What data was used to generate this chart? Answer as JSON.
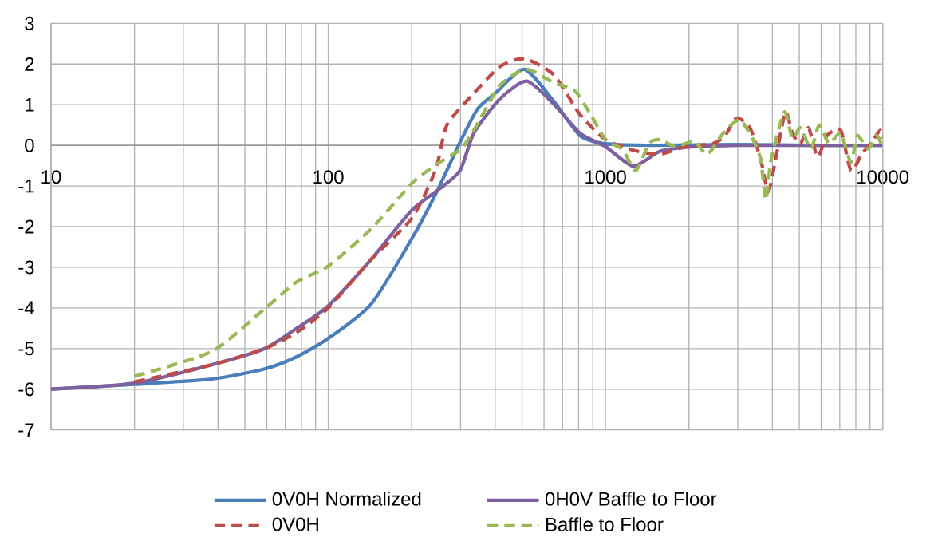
{
  "chart_data": {
    "type": "line",
    "log": "x",
    "xlim": [
      10,
      10000
    ],
    "xticks": [
      10,
      100,
      1000,
      10000
    ],
    "ylim": [
      -7,
      3
    ],
    "yticks": [
      -7,
      -6,
      -5,
      -4,
      -3,
      -2,
      -1,
      0,
      1,
      2,
      3
    ],
    "grid": true,
    "legend": "bottom",
    "marker": "none",
    "series": [
      {
        "name": "0V0H Normalized",
        "color": "#4a7ebb",
        "line_style": "solid",
        "x": [
          10,
          20,
          38,
          59,
          77,
          100,
          143,
          200,
          244,
          300,
          346,
          400,
          509,
          650,
          809,
          1000,
          1500,
          3000,
          6000,
          10000
        ],
        "values": [
          -6,
          -5.88,
          -5.75,
          -5.5,
          -5.2,
          -4.75,
          -3.9,
          -2.3,
          -1.2,
          0.1,
          0.9,
          1.28,
          1.87,
          1.09,
          0.24,
          0.04,
          0,
          0.02,
          0,
          0
        ]
      },
      {
        "name": "0H0V Baffle to Floor",
        "color": "#7d60a0",
        "line_style": "solid",
        "x": [
          10,
          20,
          38,
          59,
          77,
          100,
          143,
          200,
          260,
          300,
          335,
          417,
          520,
          650,
          809,
          1000,
          1258,
          1568,
          1955,
          3000,
          6000,
          10000
        ],
        "values": [
          -6,
          -5.85,
          -5.4,
          -5.0,
          -4.5,
          -3.95,
          -2.8,
          -1.6,
          -1.0,
          -0.6,
          0.3,
          1.15,
          1.58,
          1.02,
          0.3,
          -0.03,
          -0.51,
          -0.15,
          -0.05,
          0,
          0,
          0
        ]
      },
      {
        "name": "0V0H",
        "color": "#be4b48",
        "line_style": "dashed",
        "x": [
          20,
          38,
          59,
          77,
          100,
          143,
          200,
          244,
          268,
          335,
          417,
          509,
          650,
          809,
          1000,
          1258,
          1568,
          1955,
          2440,
          2700,
          2970,
          3320,
          3630,
          3870,
          4140,
          4460,
          4720,
          5050,
          5400,
          5820,
          6300,
          7050,
          7680,
          8400,
          9160,
          9800,
          10000
        ],
        "values": [
          -5.82,
          -5.4,
          -5.0,
          -4.6,
          -4.0,
          -2.8,
          -1.8,
          -0.6,
          0.5,
          1.28,
          1.94,
          2.13,
          1.74,
          0.76,
          0.14,
          -0.12,
          -0.22,
          -0.03,
          0.04,
          0.24,
          0.67,
          0.43,
          -0.35,
          -1.14,
          -0.22,
          0.82,
          0.3,
          0.04,
          0.43,
          -0.28,
          0.24,
          0.37,
          -0.62,
          -0.22,
          0.1,
          0.37,
          0.17
        ]
      },
      {
        "name": "Baffle to Floor",
        "color": "#98b954",
        "line_style": "dashed",
        "x": [
          20,
          38,
          59,
          77,
          100,
          143,
          200,
          244,
          300,
          335,
          417,
          520,
          650,
          774,
          884,
          1000,
          1150,
          1286,
          1436,
          1568,
          1790,
          2090,
          2330,
          2660,
          3040,
          3390,
          3630,
          3790,
          3960,
          4420,
          4720,
          5050,
          5510,
          5900,
          6400,
          7050,
          7680,
          8100,
          8850,
          9530,
          10000
        ],
        "values": [
          -5.68,
          -5.07,
          -4.02,
          -3.36,
          -2.97,
          -2.05,
          -0.94,
          -0.48,
          -0.1,
          0.37,
          1.48,
          1.87,
          1.54,
          1.35,
          0.76,
          0.14,
          -0.1,
          -0.62,
          0.04,
          0.14,
          -0.03,
          0.1,
          -0.22,
          0.3,
          0.63,
          0.17,
          -0.35,
          -1.34,
          -0.35,
          0.82,
          0.17,
          0.43,
          -0.09,
          0.5,
          0.04,
          0.3,
          -0.42,
          0.24,
          -0.09,
          0.24,
          -0.09
        ]
      }
    ]
  }
}
